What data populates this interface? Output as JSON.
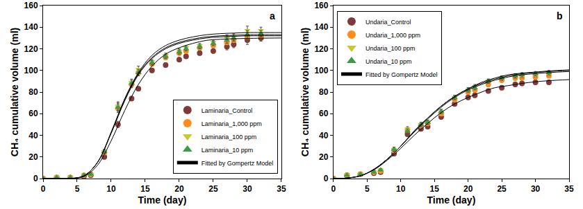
{
  "chart_data": [
    {
      "type": "scatter",
      "annotations": [
        "a"
      ],
      "x_label": "Time (day)",
      "y_label": "CH₄ cumulative volume (ml)",
      "xlim": [
        0,
        35
      ],
      "xticks": [
        0,
        5,
        10,
        15,
        20,
        25,
        30,
        35
      ],
      "ylim": [
        0,
        160
      ],
      "yticks": [
        0,
        20,
        40,
        60,
        80,
        100,
        120,
        140,
        160
      ],
      "grid": false,
      "legend": "lower right",
      "series": [
        {
          "name": "Laminaria_Control",
          "color": "#7f3b3b",
          "marker": "circle",
          "x": [
            0,
            2,
            4,
            6,
            7,
            9,
            11,
            13,
            14,
            16,
            18,
            20,
            21,
            23,
            25,
            27,
            28,
            30,
            32
          ],
          "values": [
            0,
            1,
            1,
            2,
            3,
            20,
            50,
            74,
            83,
            100,
            105,
            110,
            113,
            116,
            118,
            122,
            124,
            128,
            130
          ],
          "errors": [
            0,
            0.5,
            0.5,
            1,
            1,
            2,
            3,
            2,
            2,
            2,
            2,
            2,
            2,
            2,
            2,
            3,
            3,
            4,
            3
          ]
        },
        {
          "name": "Laminaria_1,000 ppm",
          "color": "#ff8c1a",
          "marker": "circle",
          "x": [
            0,
            2,
            4,
            6,
            7,
            9,
            11,
            13,
            14,
            16,
            18,
            20,
            21,
            23,
            25,
            27,
            28,
            30,
            32
          ],
          "values": [
            0,
            1,
            1,
            3,
            4,
            24,
            65,
            87,
            98,
            106,
            112,
            116,
            118,
            121,
            123,
            126,
            128,
            131,
            132
          ],
          "errors": [
            0,
            0.5,
            0.5,
            1,
            1,
            2,
            4,
            3,
            3,
            2,
            2,
            2,
            2,
            2,
            2,
            3,
            3,
            4,
            3
          ]
        },
        {
          "name": "Laminaria_100 ppm",
          "color": "#c8c832",
          "marker": "triangle-down",
          "x": [
            0,
            2,
            4,
            6,
            7,
            9,
            11,
            13,
            14,
            16,
            18,
            20,
            21,
            23,
            25,
            27,
            28,
            30,
            32
          ],
          "values": [
            0,
            1,
            1,
            3,
            4,
            25,
            67,
            89,
            101,
            108,
            114,
            118,
            121,
            123,
            126,
            130,
            131,
            137,
            137
          ],
          "errors": [
            0,
            0.5,
            0.5,
            1,
            1,
            2,
            4,
            3,
            3,
            2,
            2,
            2,
            2,
            2,
            2,
            3,
            3,
            4,
            3
          ]
        },
        {
          "name": "Laminaria_10 ppm",
          "color": "#3a9a48",
          "marker": "triangle-up",
          "x": [
            0,
            2,
            4,
            6,
            7,
            9,
            11,
            13,
            14,
            16,
            18,
            20,
            21,
            23,
            25,
            27,
            28,
            30,
            32
          ],
          "values": [
            0,
            1,
            1,
            3,
            4,
            25,
            66,
            88,
            98,
            107,
            113,
            117,
            120,
            122,
            125,
            128,
            130,
            133,
            134
          ],
          "errors": [
            0,
            0.5,
            0.5,
            1,
            1,
            2,
            4,
            3,
            3,
            2,
            2,
            2,
            2,
            2,
            2,
            3,
            3,
            4,
            3
          ]
        },
        {
          "name": "Fitted by Gompertz Model",
          "type": "line",
          "color": "#000000",
          "x": [
            0,
            2,
            4,
            6,
            8,
            10,
            12,
            14,
            16,
            18,
            20,
            22,
            24,
            26,
            28,
            30,
            32,
            35
          ],
          "values": [
            0,
            0,
            0.1,
            1.9,
            12.4,
            35,
            63,
            87,
            104,
            115,
            121,
            125,
            127.8,
            128.8,
            129.3,
            129.6,
            129.8,
            130
          ]
        },
        {
          "name": "Fitted by Gompertz Model",
          "type": "line",
          "color": "#000000",
          "x": [
            0,
            2,
            4,
            6,
            8,
            10,
            12,
            14,
            16,
            18,
            20,
            22,
            24,
            26,
            28,
            30,
            32,
            35
          ],
          "values": [
            0,
            0,
            0.1,
            2.5,
            15,
            42,
            72,
            96,
            111,
            120,
            125,
            128,
            130,
            131,
            131.5,
            132,
            132,
            132
          ]
        },
        {
          "name": "Fitted by Gompertz Model",
          "type": "line",
          "color": "#000000",
          "x": [
            0,
            2,
            4,
            6,
            8,
            10,
            12,
            14,
            16,
            18,
            20,
            22,
            24,
            26,
            28,
            30,
            32,
            35
          ],
          "values": [
            0,
            0,
            0.1,
            2.5,
            15,
            43,
            74,
            98,
            114,
            123,
            128,
            131,
            133,
            134,
            134.5,
            135,
            135,
            135
          ]
        },
        {
          "name": "Fitted by Gompertz Model",
          "type": "line",
          "color": "#000000",
          "x": [
            0,
            2,
            4,
            6,
            8,
            10,
            12,
            14,
            16,
            18,
            20,
            22,
            24,
            26,
            28,
            30,
            32,
            35
          ],
          "values": [
            0,
            0,
            0.1,
            2.5,
            15,
            42,
            73,
            97,
            112,
            121,
            126,
            129,
            131,
            132,
            132.5,
            133,
            133,
            133
          ]
        }
      ]
    },
    {
      "type": "scatter",
      "annotations": [
        "b"
      ],
      "x_label": "Time (day)",
      "y_label": "CH₄ cumulative volume (ml)",
      "xlim": [
        0,
        35
      ],
      "xticks": [
        0,
        5,
        10,
        15,
        20,
        25,
        30,
        35
      ],
      "ylim": [
        0,
        160
      ],
      "yticks": [
        0,
        20,
        40,
        60,
        80,
        100,
        120,
        140,
        160
      ],
      "grid": false,
      "legend": "upper left",
      "series": [
        {
          "name": "Undaria_Control",
          "color": "#7f3b3b",
          "marker": "circle",
          "x": [
            0,
            2,
            4,
            6,
            7,
            9,
            11,
            13,
            14,
            16,
            18,
            20,
            21,
            23,
            25,
            27,
            28,
            30,
            32
          ],
          "values": [
            0,
            3,
            4,
            5,
            6,
            23,
            41,
            46,
            48,
            57,
            69,
            75,
            77,
            81,
            84,
            87,
            88,
            89,
            89
          ],
          "errors": [
            0,
            0.5,
            0.5,
            1,
            1,
            2,
            2,
            2,
            2,
            2,
            2,
            2,
            2,
            2,
            2,
            2,
            2,
            2,
            2
          ]
        },
        {
          "name": "Undaria_1,000 ppm",
          "color": "#ff8c1a",
          "marker": "circle",
          "x": [
            0,
            2,
            4,
            6,
            7,
            9,
            11,
            13,
            14,
            16,
            18,
            20,
            21,
            23,
            25,
            27,
            28,
            30,
            32
          ],
          "values": [
            0,
            3,
            4,
            6,
            7,
            26,
            45,
            49,
            51,
            60,
            73,
            80,
            82,
            87,
            91,
            93,
            93,
            94,
            95
          ],
          "errors": [
            0,
            0.5,
            0.5,
            1,
            1,
            2,
            2,
            2,
            2,
            2,
            2,
            2,
            2,
            2,
            2,
            2,
            2,
            2,
            2
          ]
        },
        {
          "name": "Undaria_100 ppm",
          "color": "#c8c832",
          "marker": "triangle-down",
          "x": [
            0,
            2,
            4,
            6,
            7,
            9,
            11,
            13,
            14,
            16,
            18,
            20,
            21,
            23,
            25,
            27,
            28,
            30,
            32
          ],
          "values": [
            0,
            3,
            4,
            6,
            8,
            27,
            46,
            50,
            52,
            62,
            75,
            82,
            85,
            90,
            93,
            95,
            95,
            96,
            97
          ],
          "errors": [
            0,
            0.5,
            0.5,
            1,
            1,
            2,
            2,
            2,
            2,
            2,
            2,
            2,
            2,
            2,
            2,
            2,
            2,
            2,
            2
          ]
        },
        {
          "name": "Undaria_10 ppm",
          "color": "#3a9a48",
          "marker": "triangle-up",
          "x": [
            0,
            2,
            4,
            6,
            7,
            9,
            11,
            13,
            14,
            16,
            18,
            20,
            21,
            23,
            25,
            27,
            28,
            30,
            32
          ],
          "values": [
            0,
            3,
            4,
            6,
            8,
            27,
            44,
            50,
            52,
            62,
            75,
            82,
            84,
            90,
            93,
            95,
            96,
            97,
            98
          ],
          "errors": [
            0,
            0.5,
            0.5,
            1,
            1,
            2,
            2,
            2,
            2,
            2,
            2,
            2,
            2,
            2,
            2,
            2,
            2,
            2,
            2
          ]
        },
        {
          "name": "Fitted by Gompertz Model",
          "type": "line",
          "color": "#000000",
          "x": [
            0,
            2,
            4,
            6,
            8,
            10,
            12,
            14,
            16,
            18,
            20,
            22,
            24,
            26,
            28,
            30,
            32,
            35
          ],
          "values": [
            0,
            0.5,
            2.5,
            8,
            17,
            28,
            40,
            51,
            61,
            69,
            75,
            80,
            84,
            86,
            88,
            89.5,
            90.5,
            91.5
          ]
        },
        {
          "name": "Fitted by Gompertz Model",
          "type": "line",
          "color": "#000000",
          "x": [
            0,
            2,
            4,
            6,
            8,
            10,
            12,
            14,
            16,
            18,
            20,
            22,
            24,
            26,
            28,
            30,
            32,
            35
          ],
          "values": [
            0,
            0.5,
            2.5,
            8.5,
            18,
            30,
            43,
            55,
            66,
            75,
            82,
            87,
            91,
            94,
            96,
            97,
            98,
            99
          ]
        },
        {
          "name": "Fitted by Gompertz Model",
          "type": "line",
          "color": "#000000",
          "x": [
            0,
            2,
            4,
            6,
            8,
            10,
            12,
            14,
            16,
            18,
            20,
            22,
            24,
            26,
            28,
            30,
            32,
            35
          ],
          "values": [
            0,
            0.5,
            2.5,
            8.5,
            18,
            30,
            44,
            56,
            67,
            76,
            83,
            88,
            92,
            95,
            97,
            98,
            99,
            100
          ]
        },
        {
          "name": "Fitted by Gompertz Model",
          "type": "line",
          "color": "#000000",
          "x": [
            0,
            2,
            4,
            6,
            8,
            10,
            12,
            14,
            16,
            18,
            20,
            22,
            24,
            26,
            28,
            30,
            32,
            35
          ],
          "values": [
            0,
            0.5,
            2.5,
            8.5,
            18,
            30,
            44,
            56,
            67,
            76,
            83,
            89,
            93,
            96,
            97.5,
            98.5,
            99.5,
            100.5
          ]
        }
      ]
    }
  ]
}
